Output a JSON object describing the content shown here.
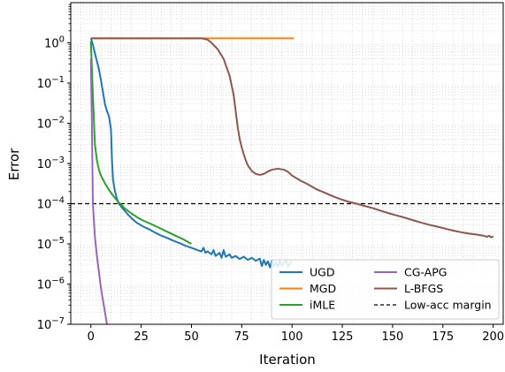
{
  "chart_data": {
    "type": "line",
    "xlabel": "Iteration",
    "ylabel": "Error",
    "xlim": [
      -10,
      205
    ],
    "ylim": [
      1e-07,
      10
    ],
    "yscale": "log",
    "grid": "minor-dotted",
    "x_ticks": [
      0,
      25,
      50,
      75,
      100,
      125,
      150,
      175,
      200
    ],
    "x_tick_labels": [
      "0",
      "25",
      "50",
      "75",
      "100",
      "125",
      "150",
      "175",
      "200"
    ],
    "y_ticks": [
      {
        "value": 1,
        "base": "10",
        "exp": "0"
      },
      {
        "value": 0.1,
        "base": "10",
        "exp": "−1"
      },
      {
        "value": 0.01,
        "base": "10",
        "exp": "−2"
      },
      {
        "value": 0.001,
        "base": "10",
        "exp": "−3"
      },
      {
        "value": 0.0001,
        "base": "10",
        "exp": "−4"
      },
      {
        "value": 1e-05,
        "base": "10",
        "exp": "−5"
      },
      {
        "value": 1e-06,
        "base": "10",
        "exp": "−6"
      },
      {
        "value": 1e-07,
        "base": "10",
        "exp": "−7"
      }
    ],
    "threshold": {
      "name": "Low-acc margin",
      "y": 0.0001,
      "color": "#000000",
      "style": "dashed"
    },
    "legend": {
      "position": "lower-right",
      "columns": 2
    },
    "series": [
      {
        "name": "UGD",
        "color": "#1f77b4",
        "points": [
          [
            0,
            1.3
          ],
          [
            1,
            0.9
          ],
          [
            2,
            0.55
          ],
          [
            3,
            0.35
          ],
          [
            4,
            0.22
          ],
          [
            5,
            0.12
          ],
          [
            6,
            0.06
          ],
          [
            7,
            0.03
          ],
          [
            8,
            0.02
          ],
          [
            9,
            0.015
          ],
          [
            10,
            0.007
          ],
          [
            10.5,
            0.0012
          ],
          [
            11,
            0.0004
          ],
          [
            12,
            0.0002
          ],
          [
            13,
            0.00013
          ],
          [
            14,
            0.0001
          ],
          [
            15,
            8.5e-05
          ],
          [
            17,
            6.5e-05
          ],
          [
            19,
            5e-05
          ],
          [
            21,
            4e-05
          ],
          [
            23,
            3.3e-05
          ],
          [
            26,
            2.7e-05
          ],
          [
            29,
            2.3e-05
          ],
          [
            32,
            1.9e-05
          ],
          [
            35,
            1.6e-05
          ],
          [
            38,
            1.4e-05
          ],
          [
            41,
            1.2e-05
          ],
          [
            44,
            1.05e-05
          ],
          [
            47,
            9e-06
          ],
          [
            50,
            8e-06
          ],
          [
            53,
            7e-06
          ],
          [
            55,
            6.5e-06
          ],
          [
            56,
            8e-06
          ],
          [
            57,
            6e-06
          ],
          [
            58,
            6.5e-06
          ],
          [
            60,
            5.5e-06
          ],
          [
            61,
            7e-06
          ],
          [
            62,
            5e-06
          ],
          [
            64,
            6e-06
          ],
          [
            65,
            4.5e-06
          ],
          [
            66,
            7e-06
          ],
          [
            67,
            4.8e-06
          ],
          [
            69,
            5.5e-06
          ],
          [
            70,
            4.5e-06
          ],
          [
            72,
            5e-06
          ],
          [
            74,
            4.2e-06
          ],
          [
            76,
            4.8e-06
          ],
          [
            78,
            4e-06
          ],
          [
            80,
            4.5e-06
          ],
          [
            82,
            3.8e-06
          ],
          [
            84,
            4.3e-06
          ],
          [
            85,
            2.8e-06
          ],
          [
            86,
            4e-06
          ],
          [
            87,
            3e-06
          ],
          [
            88,
            3.7e-06
          ],
          [
            89,
            2.6e-06
          ],
          [
            90,
            3.8e-06
          ],
          [
            91,
            2.8e-06
          ],
          [
            92,
            3.5e-06
          ],
          [
            93,
            2.7e-06
          ],
          [
            94,
            3.8e-06
          ],
          [
            95,
            2.8e-06
          ],
          [
            96,
            3.5e-06
          ],
          [
            97,
            3.8e-06
          ],
          [
            98,
            2.7e-06
          ],
          [
            99,
            3.3e-06
          ],
          [
            100,
            3.7e-06
          ]
        ]
      },
      {
        "name": "MGD",
        "color": "#ff7f0e",
        "points": [
          [
            0,
            1.3
          ],
          [
            101,
            1.3
          ]
        ]
      },
      {
        "name": "iMLE",
        "color": "#2ca02c",
        "points": [
          [
            0,
            1.1
          ],
          [
            1,
            0.05
          ],
          [
            2,
            0.003
          ],
          [
            3,
            0.0012
          ],
          [
            4,
            0.0007
          ],
          [
            5,
            0.0005
          ],
          [
            7,
            0.00032
          ],
          [
            9,
            0.00022
          ],
          [
            11,
            0.00016
          ],
          [
            13,
            0.00012
          ],
          [
            15,
            9.5e-05
          ],
          [
            17,
            7.5e-05
          ],
          [
            20,
            5.8e-05
          ],
          [
            23,
            4.6e-05
          ],
          [
            26,
            3.8e-05
          ],
          [
            30,
            3.1e-05
          ],
          [
            34,
            2.5e-05
          ],
          [
            38,
            2e-05
          ],
          [
            42,
            1.6e-05
          ],
          [
            46,
            1.3e-05
          ],
          [
            50,
            1e-05
          ]
        ]
      },
      {
        "name": "CG-APG",
        "color": "#9467bd",
        "points": [
          [
            0,
            0.4
          ],
          [
            0.5,
            0.01
          ],
          [
            1,
            0.0001
          ],
          [
            2,
            1.5e-05
          ],
          [
            3,
            5e-06
          ],
          [
            4,
            2e-06
          ],
          [
            5,
            8e-07
          ],
          [
            6,
            4e-07
          ],
          [
            7,
            2e-07
          ],
          [
            8,
            1e-07
          ]
        ]
      },
      {
        "name": "L-BFGS",
        "color": "#8c564b",
        "points": [
          [
            0,
            1.3
          ],
          [
            50,
            1.3
          ],
          [
            55,
            1.3
          ],
          [
            58,
            1.2
          ],
          [
            60,
            1.0
          ],
          [
            63,
            0.7
          ],
          [
            66,
            0.4
          ],
          [
            69,
            0.15
          ],
          [
            71,
            0.05
          ],
          [
            72,
            0.02
          ],
          [
            73,
            0.008
          ],
          [
            74,
            0.004
          ],
          [
            75,
            0.0025
          ],
          [
            76,
            0.0017
          ],
          [
            77,
            0.0012
          ],
          [
            78,
            0.0009
          ],
          [
            80,
            0.00065
          ],
          [
            82,
            0.00055
          ],
          [
            84,
            0.00052
          ],
          [
            86,
            0.00055
          ],
          [
            88,
            0.00063
          ],
          [
            90,
            0.0007
          ],
          [
            93,
            0.00074
          ],
          [
            96,
            0.0007
          ],
          [
            98,
            0.00062
          ],
          [
            100,
            0.0005
          ],
          [
            104,
            0.00038
          ],
          [
            108,
            0.0003
          ],
          [
            112,
            0.00023
          ],
          [
            116,
            0.00019
          ],
          [
            120,
            0.000155
          ],
          [
            124,
            0.00013
          ],
          [
            128,
            0.000112
          ],
          [
            132,
            0.0001
          ],
          [
            136,
            8.8e-05
          ],
          [
            140,
            7.8e-05
          ],
          [
            144,
            6.7e-05
          ],
          [
            148,
            5.8e-05
          ],
          [
            152,
            5.1e-05
          ],
          [
            156,
            4.5e-05
          ],
          [
            160,
            3.9e-05
          ],
          [
            164,
            3.4e-05
          ],
          [
            168,
            3e-05
          ],
          [
            172,
            2.7e-05
          ],
          [
            176,
            2.4e-05
          ],
          [
            180,
            2.15e-05
          ],
          [
            184,
            1.95e-05
          ],
          [
            188,
            1.8e-05
          ],
          [
            192,
            1.7e-05
          ],
          [
            195,
            1.6e-05
          ],
          [
            197,
            1.5e-05
          ],
          [
            198,
            1.6e-05
          ],
          [
            199,
            1.45e-05
          ],
          [
            200,
            1.55e-05
          ]
        ]
      }
    ]
  }
}
